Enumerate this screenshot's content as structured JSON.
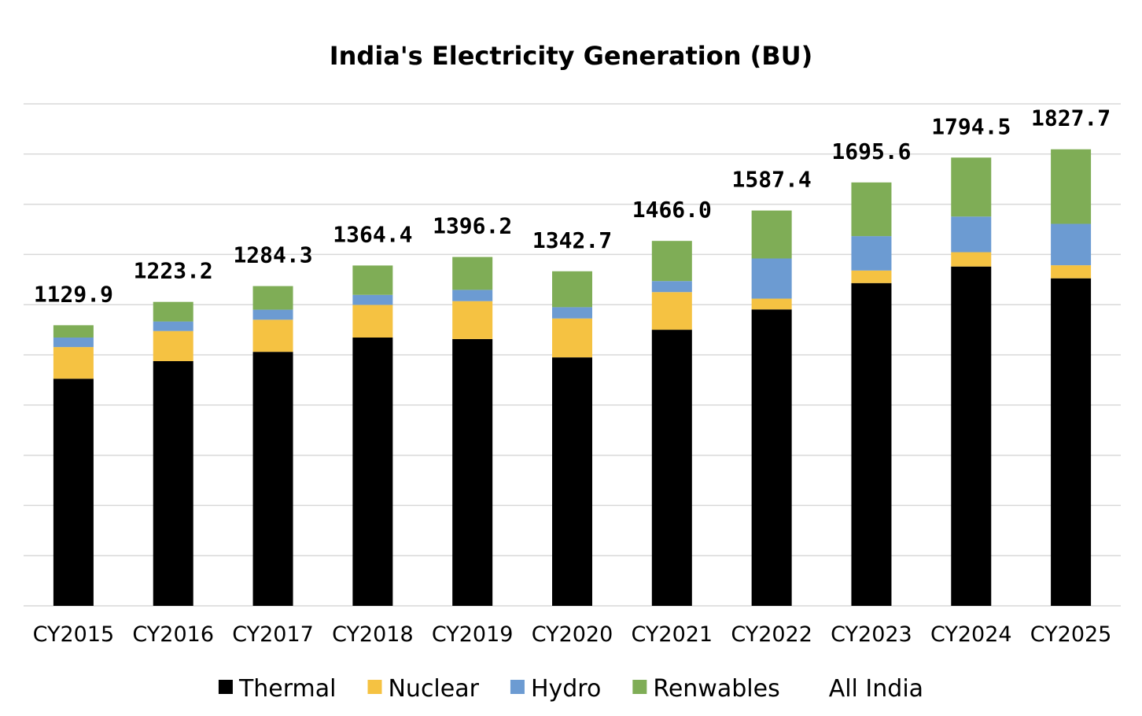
{
  "chart_data": {
    "type": "bar",
    "stacked": true,
    "title": "India's Electricity Generation (BU)",
    "xlabel": "",
    "ylabel": "",
    "ylim": [
      0,
      2000
    ],
    "grid": true,
    "categories": [
      "CY2015",
      "CY2016",
      "CY2017",
      "CY2018",
      "CY2019",
      "CY2020",
      "CY2021",
      "CY2022",
      "CY2023",
      "CY2024",
      "CY2025"
    ],
    "series": [
      {
        "name": "Thermal",
        "color": "#000000",
        "values": [
          905,
          975,
          1012,
          1069,
          1063,
          990,
          1100,
          1181,
          1286,
          1352,
          1305
        ]
      },
      {
        "name": "Nuclear",
        "color": "#F5C242",
        "values": [
          126,
          120,
          128,
          130,
          151,
          155,
          150,
          43,
          50,
          57,
          52
        ]
      },
      {
        "name": "Hydro",
        "color": "#6C9BD2",
        "values": [
          38,
          38,
          40,
          40,
          45,
          45,
          44,
          160,
          137,
          142,
          165
        ]
      },
      {
        "name": "Renwables",
        "color": "#7FAD56",
        "values": [
          49,
          78,
          94,
          117,
          131,
          143,
          160,
          191,
          214,
          235,
          297
        ]
      }
    ],
    "totals": {
      "name": "All India",
      "values": [
        "1129.9",
        "1223.2",
        "1284.3",
        "1364.4",
        "1396.2",
        "1342.7",
        "1466.0",
        "1587.4",
        "1695.6",
        "1794.5",
        "1827.7"
      ]
    },
    "legend_position": "bottom"
  }
}
